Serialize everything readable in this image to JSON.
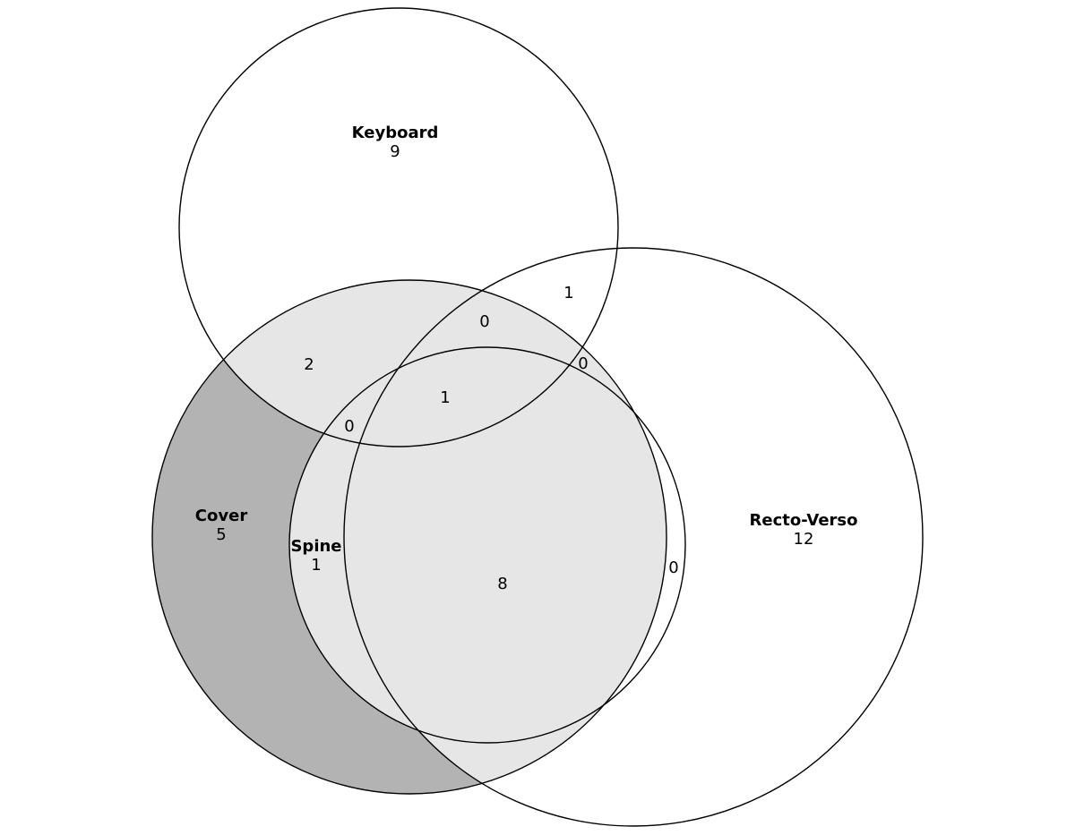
{
  "diagram": {
    "type": "venn",
    "colors": {
      "cover_only": "#b3b3b3",
      "cover_shared": "#e6e6e6",
      "outline": "#000000",
      "background": "#ffffff"
    },
    "sets": {
      "keyboard": {
        "name": "Keyboard",
        "count": "9"
      },
      "cover": {
        "name": "Cover",
        "count": "5"
      },
      "spine": {
        "name": "Spine",
        "count": "1"
      },
      "recto_verso": {
        "name": "Recto-Verso",
        "count": "12"
      }
    },
    "regions": {
      "keyboard_cover": "2",
      "keyboard_cover_recto": "0",
      "keyboard_recto": "1",
      "keyboard_cover_spine_recto": "1",
      "keyboard_cover_spine": "0",
      "keyboard_spine_recto": "0",
      "cover_spine_recto": "8",
      "spine_recto": "0"
    }
  }
}
